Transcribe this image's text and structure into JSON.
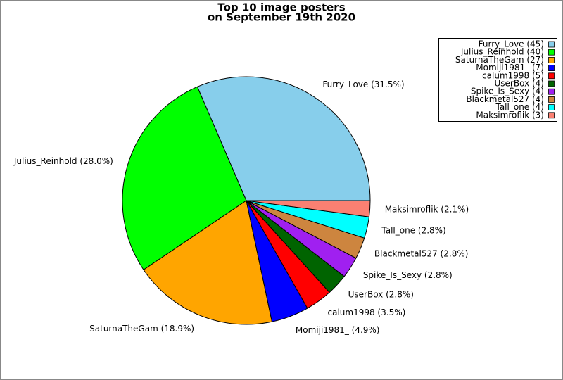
{
  "chart_data": {
    "type": "pie",
    "title": "Top 10 image posters",
    "subtitle": "on September 19th 2020",
    "categories": [
      "Furry_Love",
      "Julius_Reinhold",
      "SaturnaTheGam",
      "Momiji1981_",
      "calum1998",
      "UserBox",
      "Spike_Is_Sexy",
      "Blackmetal527",
      "Tall_one",
      "Maksimroflik"
    ],
    "values": [
      45,
      40,
      27,
      7,
      5,
      4,
      4,
      4,
      4,
      3
    ],
    "slice_labels": [
      "Furry_Love (31.5%)",
      "Julius_Reinhold (28.0%)",
      "SaturnaTheGam (18.9%)",
      "Momiji1981_ (4.9%)",
      "calum1998 (3.5%)",
      "UserBox (2.8%)",
      "Spike_Is_Sexy (2.8%)",
      "Blackmetal527 (2.8%)",
      "Tall_one (2.8%)",
      "Maksimroflik (2.1%)"
    ],
    "legend_labels": [
      "Furry_Love (45)",
      "Julius_Reinhold (40)",
      "SaturnaTheGam (27)",
      "Momiji1981_ (7)",
      "calum1998 (5)",
      "UserBox (4)",
      "Spike_Is_Sexy (4)",
      "Blackmetal527 (4)",
      "Tall_one (4)",
      "Maksimroflik (3)"
    ],
    "colors": [
      "#87ceeb",
      "#00ff00",
      "#ffa500",
      "#0000ff",
      "#ff0000",
      "#006400",
      "#a020f0",
      "#cd853f",
      "#00ffff",
      "#fa8072"
    ],
    "legend": "upper right"
  }
}
